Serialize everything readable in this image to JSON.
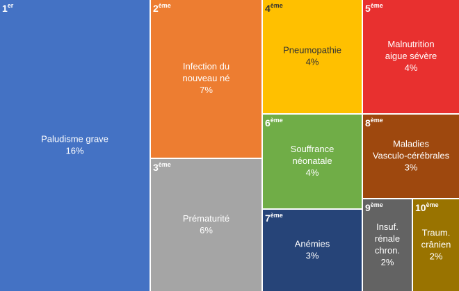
{
  "chart_data": {
    "type": "treemap",
    "labels": [
      [
        "Paludisme grave"
      ],
      [
        "Infection du",
        "nouveau né"
      ],
      [
        "Prématurité"
      ],
      [
        "Pneumopathie"
      ],
      [
        "Malnutrition",
        "aigue sévère"
      ],
      [
        "Souffrance",
        "néonatale"
      ],
      [
        "Anémies"
      ],
      [
        "Maladies",
        "Vasculo-cérébrales"
      ],
      [
        "Insuf.",
        "rénale",
        "chron."
      ],
      [
        "Traum.",
        "crânien"
      ]
    ],
    "values": [
      16,
      7,
      6,
      4,
      4,
      4,
      3,
      3,
      2,
      2
    ],
    "value_labels": [
      "16%",
      "7%",
      "6%",
      "4%",
      "4%",
      "4%",
      "3%",
      "3%",
      "2%",
      "2%"
    ],
    "ranks": [
      1,
      2,
      3,
      4,
      5,
      6,
      7,
      8,
      9,
      10
    ],
    "rank_suffixes": [
      "er",
      "ème",
      "ème",
      "ème",
      "ème",
      "ème",
      "ème",
      "ème",
      "ème",
      "ème"
    ],
    "colors": [
      "#4472c4",
      "#ed7d31",
      "#a5a5a5",
      "#ffc000",
      "#e8302f",
      "#70ad47",
      "#264478",
      "#9e480e",
      "#636363",
      "#997300"
    ]
  }
}
